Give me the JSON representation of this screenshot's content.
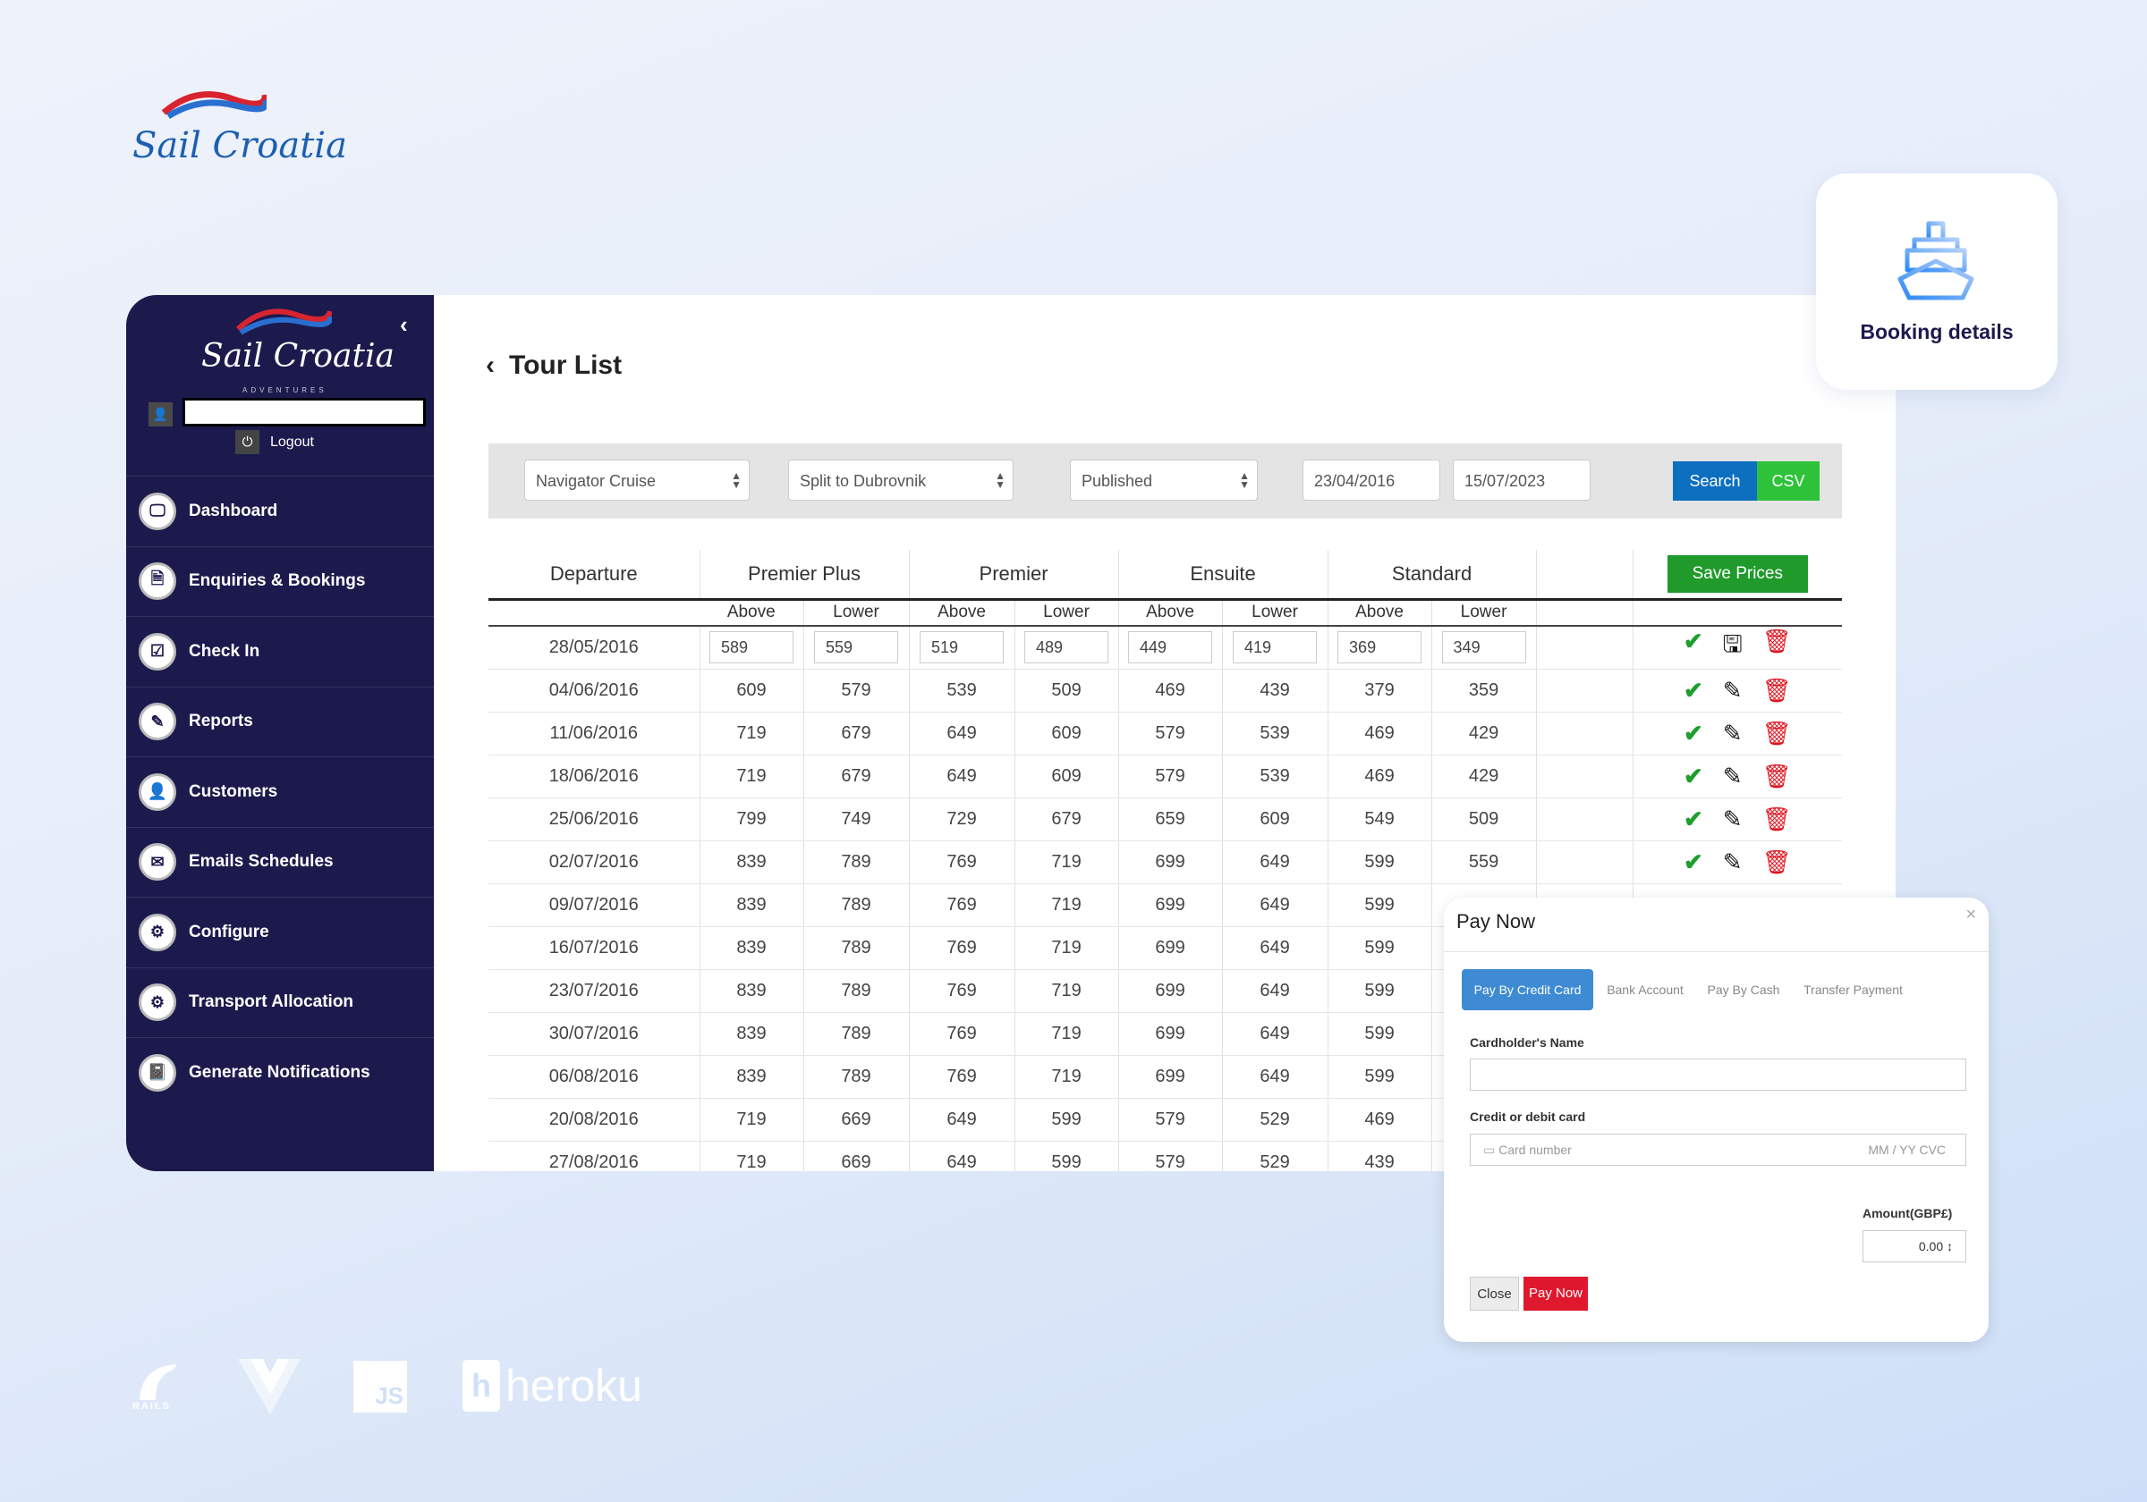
{
  "brand": {
    "logo_text": "Sail Croatia",
    "logo_sub": "ADVENTURES"
  },
  "sidebar": {
    "collapse_icon": "chevron-left-icon",
    "logout_label": "Logout",
    "items": [
      {
        "label": "Dashboard",
        "icon": "monitor-icon"
      },
      {
        "label": "Enquiries & Bookings",
        "icon": "document-icon"
      },
      {
        "label": "Check In",
        "icon": "checkbox-icon"
      },
      {
        "label": "Reports",
        "icon": "reports-icon"
      },
      {
        "label": "Customers",
        "icon": "user-icon"
      },
      {
        "label": "Emails Schedules",
        "icon": "envelope-icon"
      },
      {
        "label": "Configure",
        "icon": "gears-icon"
      },
      {
        "label": "Transport Allocation",
        "icon": "gears-icon"
      },
      {
        "label": "Generate Notifications",
        "icon": "book-icon"
      }
    ]
  },
  "main": {
    "title": "Tour List",
    "filters": {
      "ship": "Navigator Cruise",
      "route": "Split to Dubrovnik",
      "status": "Published",
      "date_from": "23/04/2016",
      "date_to": "15/07/2023",
      "search_label": "Search",
      "csv_label": "CSV"
    },
    "table": {
      "headers": [
        "Departure",
        "Premier Plus",
        "Premier",
        "Ensuite",
        "Standard"
      ],
      "subheaders": [
        "Above",
        "Lower",
        "Above",
        "Lower",
        "Above",
        "Lower",
        "Above",
        "Lower"
      ],
      "save_label": "Save Prices",
      "rows": [
        {
          "date": "28/05/2016",
          "prices": [
            "589",
            "559",
            "519",
            "489",
            "449",
            "419",
            "369",
            "349"
          ],
          "editing": true,
          "actions": true
        },
        {
          "date": "04/06/2016",
          "prices": [
            "609",
            "579",
            "539",
            "509",
            "469",
            "439",
            "379",
            "359"
          ],
          "actions": true
        },
        {
          "date": "11/06/2016",
          "prices": [
            "719",
            "679",
            "649",
            "609",
            "579",
            "539",
            "469",
            "429"
          ],
          "actions": true
        },
        {
          "date": "18/06/2016",
          "prices": [
            "719",
            "679",
            "649",
            "609",
            "579",
            "539",
            "469",
            "429"
          ],
          "actions": true
        },
        {
          "date": "25/06/2016",
          "prices": [
            "799",
            "749",
            "729",
            "679",
            "659",
            "609",
            "549",
            "509"
          ],
          "actions": true
        },
        {
          "date": "02/07/2016",
          "prices": [
            "839",
            "789",
            "769",
            "719",
            "699",
            "649",
            "599",
            "559"
          ],
          "actions": true
        },
        {
          "date": "09/07/2016",
          "prices": [
            "839",
            "789",
            "769",
            "719",
            "699",
            "649",
            "599",
            ""
          ]
        },
        {
          "date": "16/07/2016",
          "prices": [
            "839",
            "789",
            "769",
            "719",
            "699",
            "649",
            "599",
            ""
          ]
        },
        {
          "date": "23/07/2016",
          "prices": [
            "839",
            "789",
            "769",
            "719",
            "699",
            "649",
            "599",
            ""
          ]
        },
        {
          "date": "30/07/2016",
          "prices": [
            "839",
            "789",
            "769",
            "719",
            "699",
            "649",
            "599",
            ""
          ]
        },
        {
          "date": "06/08/2016",
          "prices": [
            "839",
            "789",
            "769",
            "719",
            "699",
            "649",
            "599",
            ""
          ]
        },
        {
          "date": "20/08/2016",
          "prices": [
            "719",
            "669",
            "649",
            "599",
            "579",
            "529",
            "469",
            ""
          ]
        },
        {
          "date": "27/08/2016",
          "prices": [
            "719",
            "669",
            "649",
            "599",
            "579",
            "529",
            "439",
            ""
          ]
        }
      ]
    }
  },
  "booking_card": {
    "label": "Booking details",
    "icon": "ship-icon"
  },
  "pay_modal": {
    "title": "Pay Now",
    "tabs": [
      "Pay By Credit Card",
      "Bank Account",
      "Pay By Cash",
      "Transfer Payment"
    ],
    "cardholder_label": "Cardholder's Name",
    "card_label": "Credit or debit card",
    "card_placeholder": "Card number",
    "card_exp_cvc": "MM / YY  CVC",
    "amount_label": "Amount(GBP£)",
    "amount_value": "0.00",
    "close_label": "Close",
    "pay_label": "Pay Now"
  },
  "tech": {
    "rails": "RAILS",
    "js": "JS",
    "heroku": "heroku"
  },
  "colors": {
    "sidebar": "#1c1a4d",
    "search": "#0d6fc0",
    "csv": "#2dc23a",
    "save": "#1f9a2b",
    "pay": "#e0182d",
    "tab_active": "#3e8bd3"
  }
}
